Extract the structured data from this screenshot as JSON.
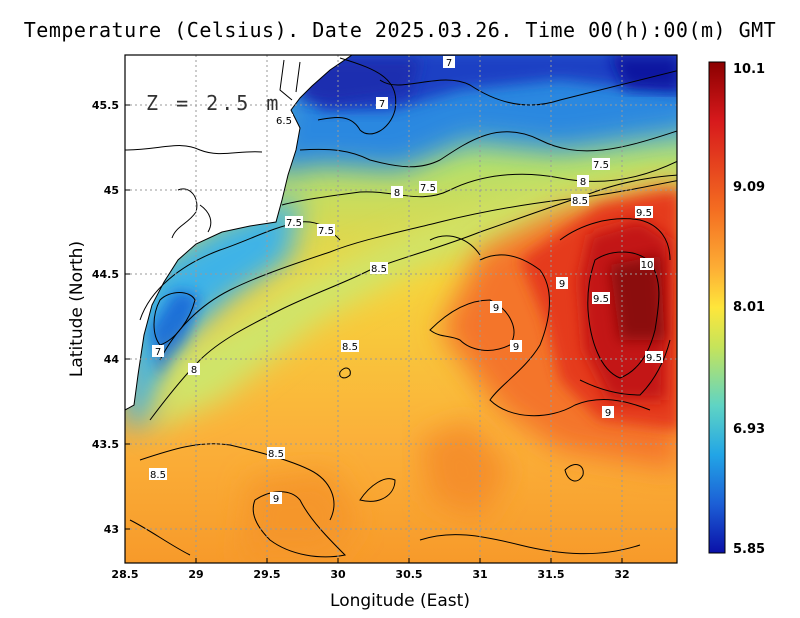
{
  "title": "Temperature (Celsius). Date 2025.03.26. Time 00(h):00(m) GMT",
  "depth_label": "Z = 2.5 m",
  "x_axis": {
    "label": "Longitude (East)",
    "ticks": [
      "28.5",
      "29",
      "29.5",
      "30",
      "30.5",
      "31",
      "31.5",
      "32"
    ]
  },
  "y_axis": {
    "label": "Latitude (North)",
    "ticks": [
      "45.5",
      "45",
      "44.5",
      "44",
      "43.5",
      "43"
    ]
  },
  "colorbar": {
    "labels": [
      "10.1",
      "9.09",
      "8.01",
      "6.93",
      "5.85"
    ],
    "colors": [
      "#8b0000",
      "#d7191c",
      "#f46d21",
      "#fdae35",
      "#fee63b",
      "#c6e45a",
      "#5fd4c4",
      "#22a5e6",
      "#1c5fd6",
      "#0a10a8"
    ]
  },
  "contour_labels": [
    "7",
    "7",
    "6.5",
    "7.5",
    "8",
    "8",
    "7.5",
    "8.5",
    "7.5",
    "7.5",
    "9.5",
    "10",
    "8.5",
    "9",
    "9",
    "9.5",
    "9",
    "8.5",
    "7",
    "8",
    "9.5",
    "9",
    "8.5",
    "8.5",
    "9"
  ],
  "chart_data": {
    "type": "heatmap",
    "title": "Temperature (Celsius). Date 2025.03.26. Time 00(h):00(m) GMT",
    "xlabel": "Longitude (East)",
    "ylabel": "Latitude (North)",
    "xlim": [
      28.5,
      32.4
    ],
    "ylim": [
      42.8,
      45.8
    ],
    "colorbar_range": [
      5.85,
      10.1
    ],
    "colorbar_ticks": [
      10.1,
      9.09,
      8.01,
      6.93,
      5.85
    ],
    "contour_levels": [
      6.5,
      7,
      7.5,
      8,
      8.5,
      9,
      9.5,
      10
    ],
    "grid": true,
    "annotation": "Z = 2.5 m"
  }
}
